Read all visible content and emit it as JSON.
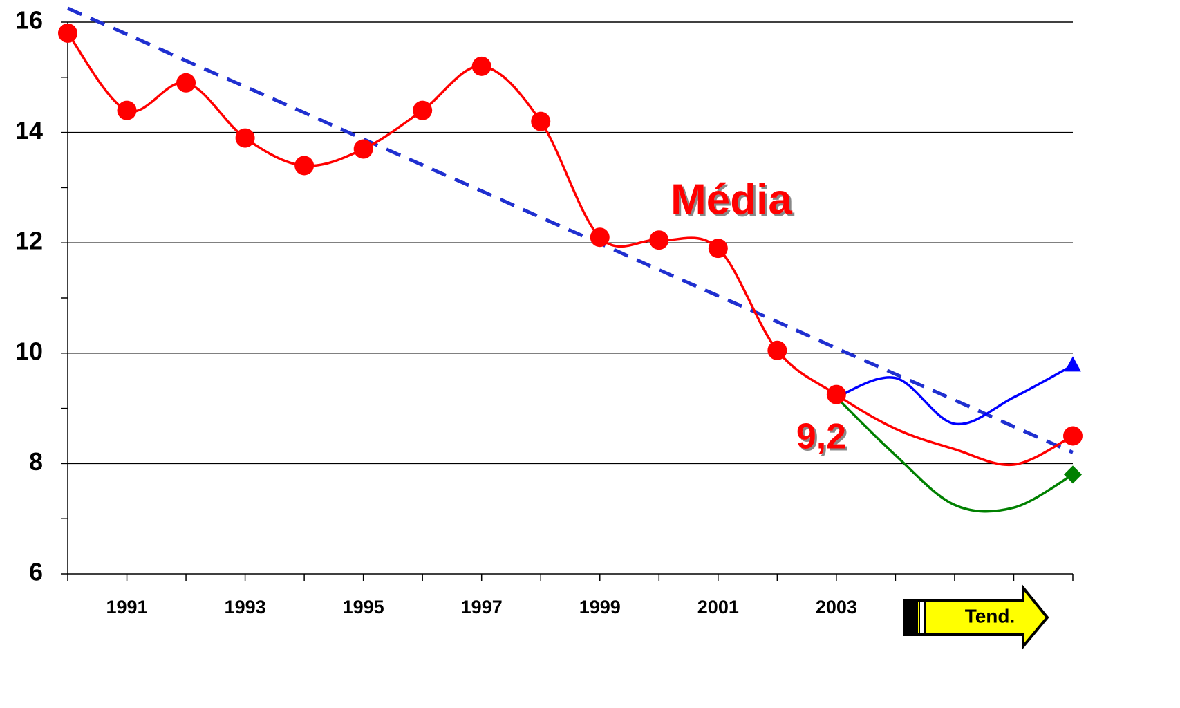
{
  "chart_data": {
    "type": "line",
    "categories": [
      null,
      "1991",
      null,
      "1993",
      null,
      "1995",
      null,
      "1997",
      null,
      "1999",
      null,
      "2001",
      null,
      "2003",
      null,
      null,
      null,
      null
    ],
    "ylim": [
      6,
      16
    ],
    "yticks": [
      6,
      8,
      10,
      12,
      14,
      16
    ],
    "grid": true,
    "series": [
      {
        "name": "Média",
        "color": "#ff0000",
        "style": "solid",
        "marker": "circle",
        "values": [
          15.8,
          14.4,
          14.9,
          13.9,
          13.4,
          13.7,
          14.4,
          15.2,
          14.2,
          12.1,
          12.05,
          11.9,
          10.05,
          9.25,
          8.63,
          8.26,
          7.98,
          8.5
        ],
        "marker_points": [
          true,
          true,
          true,
          true,
          true,
          true,
          true,
          true,
          true,
          true,
          true,
          true,
          true,
          true,
          false,
          false,
          false,
          true
        ]
      },
      {
        "color": "#0000ff",
        "style": "solid",
        "marker": "triangle",
        "values": [
          null,
          null,
          null,
          null,
          null,
          null,
          null,
          null,
          null,
          null,
          null,
          null,
          null,
          9.2,
          9.55,
          8.72,
          9.2,
          9.78
        ],
        "marker_points": [
          false,
          false,
          false,
          false,
          false,
          false,
          false,
          false,
          false,
          false,
          false,
          false,
          false,
          false,
          false,
          false,
          false,
          true
        ]
      },
      {
        "color": "#008000",
        "style": "solid",
        "marker": "diamond",
        "values": [
          null,
          null,
          null,
          null,
          null,
          null,
          null,
          null,
          null,
          null,
          null,
          null,
          null,
          9.2,
          8.15,
          7.25,
          7.2,
          7.8
        ],
        "marker_points": [
          false,
          false,
          false,
          false,
          false,
          false,
          false,
          false,
          false,
          false,
          false,
          false,
          false,
          false,
          false,
          false,
          false,
          true
        ]
      },
      {
        "color": "#1f2fd0",
        "style": "dashed",
        "marker": "none",
        "values": [
          16.25,
          15.78,
          15.3,
          14.83,
          14.36,
          13.88,
          13.41,
          12.94,
          12.46,
          11.99,
          11.51,
          11.04,
          10.57,
          10.09,
          9.62,
          9.15,
          8.67,
          8.2
        ]
      }
    ],
    "annotations": [
      "Média",
      "9,2"
    ],
    "button_label": "Tend."
  }
}
